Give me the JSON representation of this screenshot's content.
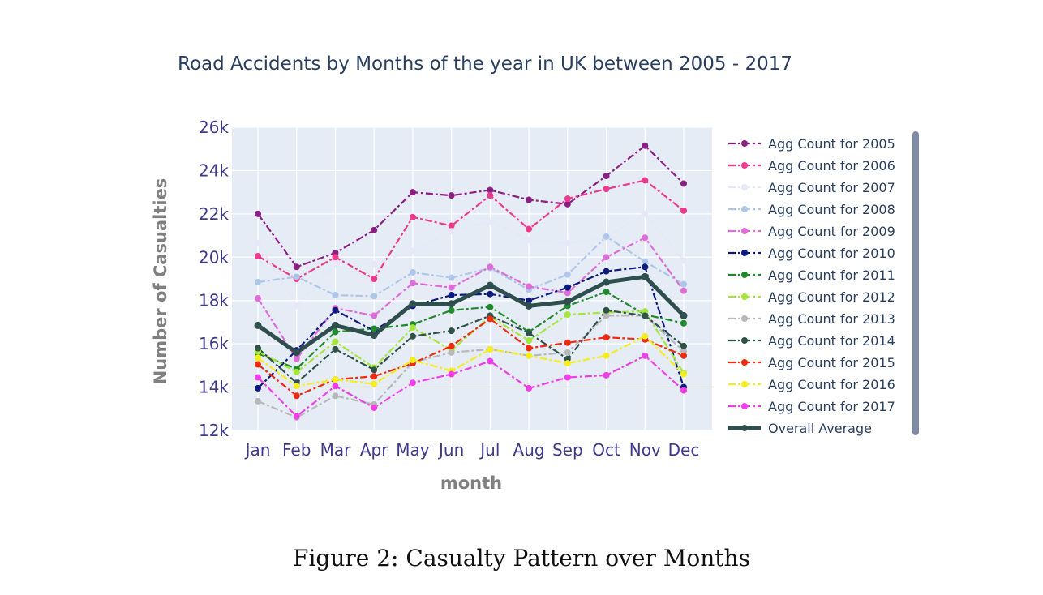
{
  "caption": "Figure 2: Casualty Pattern over Months",
  "chart_data": {
    "type": "line",
    "title": "Road Accidents by Months of the year in UK between 2005 - 2017",
    "xlabel": "month",
    "ylabel": "Number of Casualties",
    "categories": [
      "Jan",
      "Feb",
      "Mar",
      "Apr",
      "May",
      "Jun",
      "Jul",
      "Aug",
      "Sep",
      "Oct",
      "Nov",
      "Dec"
    ],
    "ylim": [
      12000,
      26000
    ],
    "yticks": [
      12000,
      14000,
      16000,
      18000,
      20000,
      22000,
      24000,
      26000
    ],
    "ytick_labels": [
      "12k",
      "14k",
      "16k",
      "18k",
      "20k",
      "22k",
      "24k",
      "26k"
    ],
    "grid": true,
    "legend_position": "right",
    "plot_background": "#e5ecf6",
    "series": [
      {
        "name": "Agg Count for 2005",
        "color": "#8b1f82",
        "dash": "dashdot",
        "values": [
          22000,
          19550,
          20200,
          21250,
          23000,
          22850,
          23100,
          22650,
          22450,
          23750,
          25150,
          23400
        ]
      },
      {
        "name": "Agg Count for 2006",
        "color": "#ee3a8c",
        "dash": "dashdot",
        "values": [
          20050,
          19000,
          20000,
          19000,
          21850,
          21450,
          22850,
          21300,
          22700,
          23150,
          23550,
          22150
        ]
      },
      {
        "name": "Agg Count for 2007",
        "color": "#e6e8f7",
        "dash": "dashdot",
        "values": [
          20650,
          17750,
          19700,
          19700,
          20300,
          21200,
          21650,
          20800,
          20650,
          20900,
          22000,
          19850
        ]
      },
      {
        "name": "Agg Count for 2008",
        "color": "#aec7e8",
        "dash": "dashdot",
        "values": [
          18850,
          19100,
          18250,
          18200,
          19300,
          19050,
          19500,
          18500,
          19200,
          20950,
          19800,
          18750
        ]
      },
      {
        "name": "Agg Count for 2009",
        "color": "#e06cd9",
        "dash": "dashdot",
        "values": [
          18100,
          15300,
          17650,
          17300,
          18800,
          18600,
          19550,
          18650,
          18350,
          20000,
          20900,
          18450
        ]
      },
      {
        "name": "Agg Count for 2010",
        "color": "#0d1a7d",
        "dash": "dashdot",
        "values": [
          13950,
          15700,
          17550,
          16600,
          17750,
          18250,
          18300,
          18000,
          18600,
          19350,
          19550,
          14000
        ]
      },
      {
        "name": "Agg Count for 2011",
        "color": "#1f8a2b",
        "dash": "dashdot",
        "values": [
          15550,
          14850,
          16550,
          16700,
          16900,
          17550,
          17700,
          16550,
          17750,
          18400,
          17350,
          16950
        ]
      },
      {
        "name": "Agg Count for 2012",
        "color": "#a4e63c",
        "dash": "dashdot",
        "values": [
          15650,
          14700,
          16100,
          14900,
          16750,
          15700,
          17250,
          16150,
          17350,
          17450,
          17500,
          14650
        ]
      },
      {
        "name": "Agg Count for 2013",
        "color": "#b8b8b8",
        "dash": "dashdot",
        "values": [
          13350,
          12600,
          13600,
          13200,
          15150,
          15600,
          15750,
          15450,
          15600,
          17300,
          17300,
          15650
        ]
      },
      {
        "name": "Agg Count for 2014",
        "color": "#2e5248",
        "dash": "dashdot",
        "values": [
          15800,
          14200,
          15750,
          14800,
          16350,
          16600,
          17300,
          16500,
          15300,
          17550,
          17300,
          15900
        ]
      },
      {
        "name": "Agg Count for 2015",
        "color": "#ee2b10",
        "dash": "dashdot",
        "values": [
          15050,
          13600,
          14350,
          14500,
          15100,
          15900,
          17150,
          15800,
          16050,
          16300,
          16200,
          15450
        ]
      },
      {
        "name": "Agg Count for 2016",
        "color": "#f4ee1c",
        "dash": "dashdot",
        "values": [
          15350,
          14050,
          14350,
          14150,
          15250,
          14750,
          15750,
          15450,
          15100,
          15450,
          16350,
          14600
        ]
      },
      {
        "name": "Agg Count for 2017",
        "color": "#f03ee8",
        "dash": "dashdot",
        "values": [
          14450,
          12650,
          14050,
          13050,
          14200,
          14600,
          15200,
          13950,
          14450,
          14550,
          15450,
          13850
        ]
      },
      {
        "name": "Overall Average",
        "color": "#2f4f4f",
        "dash": "solid",
        "width": 5,
        "values": [
          16850,
          15600,
          16850,
          16400,
          17850,
          17850,
          18700,
          17750,
          17950,
          18850,
          19100,
          17300
        ]
      }
    ]
  }
}
